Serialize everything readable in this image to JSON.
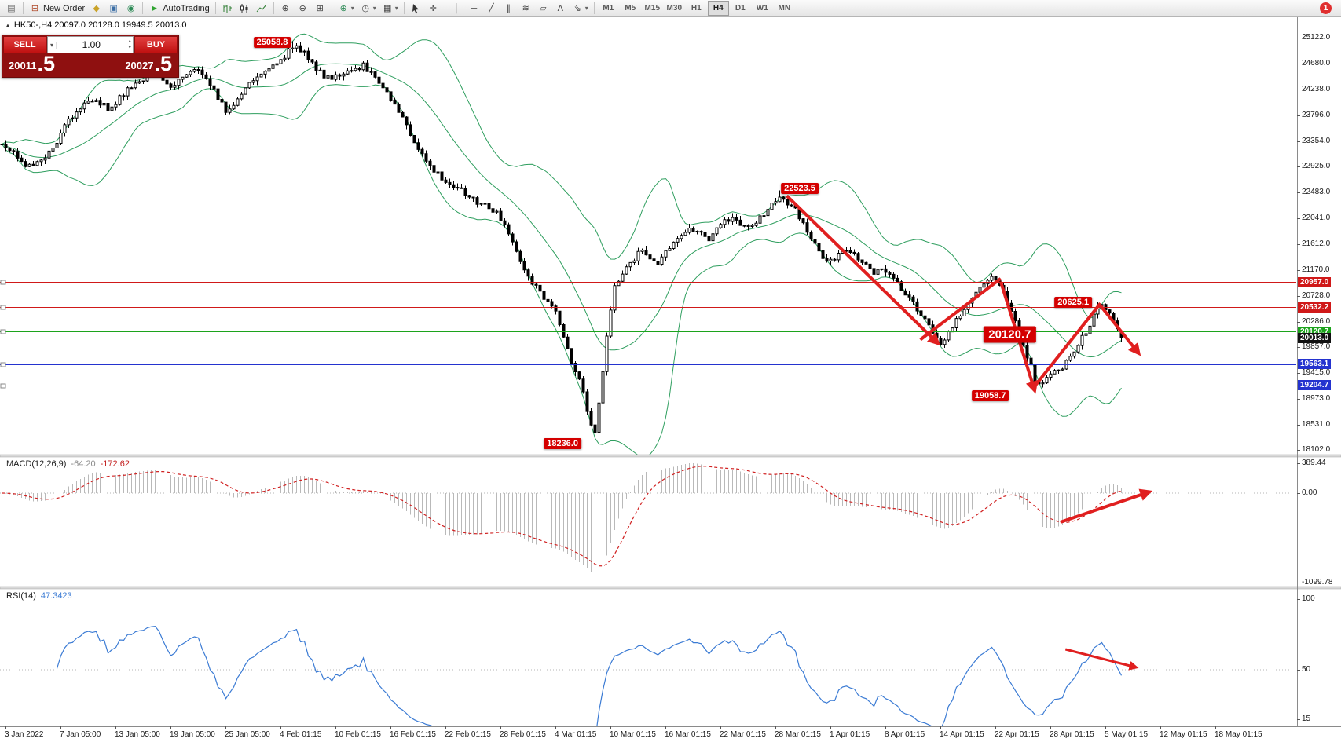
{
  "toolbar": {
    "caret_glyph": "▾",
    "notification_badge": "1",
    "timeframes": {
      "items": [
        "M1",
        "M5",
        "M15",
        "M30",
        "H1",
        "H4",
        "D1",
        "W1",
        "MN"
      ],
      "active": "H4"
    },
    "groups": [
      {
        "items": [
          {
            "name": "chart-window-icon",
            "glyph": "▤",
            "color": "#666666"
          }
        ]
      },
      {
        "items": [
          {
            "name": "new-order-button",
            "glyph": "⊞",
            "color": "#b04a2a",
            "label": "New Order"
          },
          {
            "name": "chart-profiles-icon",
            "glyph": "◆",
            "color": "#c9a227"
          },
          {
            "name": "metaeditor-icon",
            "glyph": "▣",
            "color": "#3b6ea5"
          },
          {
            "name": "alerts-icon",
            "glyph": "◉",
            "color": "#2e8b57"
          }
        ]
      },
      {
        "items": [
          {
            "name": "autotrading-button",
            "glyph": "►",
            "color": "#2fa431",
            "label": "AutoTrading"
          }
        ]
      },
      {
        "items": [
          {
            "name": "bar-chart-type-icon",
            "shape": "bars"
          },
          {
            "name": "candlestick-chart-type-icon",
            "shape": "candles"
          },
          {
            "name": "line-chart-type-icon",
            "shape": "linechart"
          }
        ]
      },
      {
        "items": [
          {
            "name": "zoom-in-icon",
            "glyph": "⊕",
            "color": "#444444"
          },
          {
            "name": "zoom-out-icon",
            "glyph": "⊖",
            "color": "#444444"
          },
          {
            "name": "tile-windows-icon",
            "glyph": "⊞",
            "color": "#444444"
          }
        ]
      },
      {
        "items": [
          {
            "name": "indicators-dropdown",
            "glyph": "⊕",
            "color": "#2e8b57",
            "caret": true
          },
          {
            "name": "periods-dropdown",
            "glyph": "◷",
            "color": "#444444",
            "caret": true
          },
          {
            "name": "templates-dropdown",
            "glyph": "▦",
            "color": "#444444",
            "caret": true
          }
        ]
      },
      {
        "items": [
          {
            "name": "cursor-tool-icon",
            "shape": "cursor"
          },
          {
            "name": "crosshair-tool-icon",
            "glyph": "✛",
            "color": "#444444"
          }
        ]
      },
      {
        "items": [
          {
            "name": "vertical-line-icon",
            "glyph": "│",
            "color": "#444444"
          },
          {
            "name": "horizontal-line-icon",
            "glyph": "─",
            "color": "#444444"
          },
          {
            "name": "trendline-icon",
            "glyph": "╱",
            "color": "#444444"
          },
          {
            "name": "channel-icon",
            "glyph": "∥",
            "color": "#444444"
          },
          {
            "name": "fibonacci-icon",
            "glyph": "≋",
            "color": "#444444"
          },
          {
            "name": "shapes-icon",
            "glyph": "▱",
            "color": "#444444"
          },
          {
            "name": "text-icon",
            "glyph": "A",
            "color": "#444444"
          },
          {
            "name": "arrows-dropdown",
            "glyph": "⇘",
            "color": "#444444",
            "caret": true
          }
        ]
      }
    ]
  },
  "trade_panel": {
    "sell_label": "SELL",
    "buy_label": "BUY",
    "volume": "1.00",
    "volume_caret": "▾",
    "volume_up": "▴",
    "volume_down": "▾",
    "sell_price_int": "20011",
    "sell_price_frac": ".5",
    "buy_price_int": "20027",
    "buy_price_frac": ".5"
  },
  "chart": {
    "symbol_marker": "▲",
    "symbol_ohlc": "HK50-,H4  20097.0 20128.0 19949.5 20013.0",
    "price_axis_ticks": [
      25122.0,
      24680.0,
      24238.0,
      23796.0,
      23354.0,
      22925.0,
      22483.0,
      22041.0,
      21612.0,
      21170.0,
      20728.0,
      20286.0,
      19857.0,
      19415.0,
      18973.0,
      18531.0,
      18102.0
    ],
    "time_labels": [
      "3 Jan 2022",
      "7 Jan 05:00",
      "13 Jan 05:00",
      "19 Jan 05:00",
      "25 Jan 05:00",
      "4 Feb 01:15",
      "10 Feb 01:15",
      "16 Feb 01:15",
      "22 Feb 01:15",
      "28 Feb 01:15",
      "4 Mar 01:15",
      "10 Mar 01:15",
      "16 Mar 01:15",
      "22 Mar 01:15",
      "28 Mar 01:15",
      "1 Apr 01:15",
      "8 Apr 01:15",
      "14 Apr 01:15",
      "22 Apr 01:15",
      "28 Apr 01:15",
      "5 May 01:15",
      "12 May 01:15",
      "18 May 01:15"
    ],
    "lines": [
      {
        "price": 20957.0,
        "label": "20957.0",
        "color": "#d01919",
        "style": "solid"
      },
      {
        "price": 20532.2,
        "label": "20532.2",
        "color": "#d01919",
        "style": "solid"
      },
      {
        "price": 20120.7,
        "label": "20120.7",
        "color": "#1ca31c",
        "style": "solid"
      },
      {
        "price": 20013.0,
        "label": "20013.0",
        "color": "#1ca31c",
        "style": "dotted",
        "tag_bg": "#111111"
      },
      {
        "price": 19563.1,
        "label": "19563.1",
        "color": "#2433cf",
        "style": "solid"
      },
      {
        "price": 19204.7,
        "label": "19204.7",
        "color": "#2433cf",
        "style": "solid"
      }
    ],
    "callouts": [
      {
        "text": "25058.8",
        "t": 0.21,
        "price": 25040,
        "big": false
      },
      {
        "text": "22523.5",
        "t": 0.617,
        "price": 22560,
        "big": false
      },
      {
        "text": "20625.1",
        "t": 0.828,
        "price": 20610,
        "big": false
      },
      {
        "text": "20120.7",
        "t": 0.779,
        "price": 20070,
        "big": true
      },
      {
        "text": "19058.7",
        "t": 0.764,
        "price": 19030,
        "big": false
      },
      {
        "text": "18236.0",
        "t": 0.434,
        "price": 18210,
        "big": false
      }
    ],
    "trend_arrows": [
      {
        "from": [
          0.607,
          22430
        ],
        "to": [
          0.723,
          19930
        ],
        "head": true
      },
      {
        "from": [
          0.71,
          19980
        ],
        "to": [
          0.772,
          21020
        ],
        "head": false
      },
      {
        "from": [
          0.772,
          20970
        ],
        "to": [
          0.798,
          19130
        ],
        "head": true
      },
      {
        "from": [
          0.798,
          19180
        ],
        "to": [
          0.849,
          20600
        ],
        "head": false
      },
      {
        "from": [
          0.849,
          20560
        ],
        "to": [
          0.878,
          19760
        ],
        "head": true
      }
    ]
  },
  "macd": {
    "label": "MACD(12,26,9)",
    "value_main": "-64.20",
    "value_signal": "-172.62",
    "axis_ticks": [
      389.44,
      0.0,
      -1099.78
    ],
    "arrow": {
      "from": [
        0.818,
        0.5
      ],
      "to": [
        0.886,
        0.27
      ]
    }
  },
  "rsi": {
    "label": "RSI(14)",
    "value": "47.3423",
    "axis_ticks": [
      100,
      50,
      15
    ],
    "level": 50,
    "arrow": {
      "from": [
        0.822,
        0.44
      ],
      "to": [
        0.876,
        0.57
      ]
    }
  },
  "chart_data": {
    "type": "candlestick",
    "symbol": "HK50-",
    "timeframe": "H4",
    "ohlc_last": {
      "open": 20097.0,
      "high": 20128.0,
      "low": 19949.5,
      "close": 20013.0
    },
    "bid": 20011.5,
    "ask": 20027.5,
    "ylim": [
      18102.0,
      25122.0
    ],
    "bollinger": {
      "period": 20,
      "deviation": 2,
      "color": "#2e9e5e"
    },
    "swing_points": [
      {
        "t": 0.2255,
        "type": "high",
        "value": 25058.8
      },
      {
        "t": 0.459,
        "type": "low",
        "value": 18236.0
      },
      {
        "t": 0.602,
        "type": "high",
        "value": 22523.5
      },
      {
        "t": 0.8,
        "type": "low",
        "value": 19058.7
      },
      {
        "t": 0.848,
        "type": "high",
        "value": 20625.1
      }
    ],
    "indicators": [
      {
        "name": "MACD",
        "params": [
          12,
          26,
          9
        ],
        "values": [
          -64.2,
          -172.62
        ],
        "range": [
          -1099.78,
          389.44
        ]
      },
      {
        "name": "RSI",
        "params": [
          14
        ],
        "value": 47.3423,
        "range_ticks": [
          100,
          50,
          15
        ]
      }
    ],
    "price_path": [
      [
        0.003,
        23300
      ],
      [
        0.012,
        23150
      ],
      [
        0.02,
        22900
      ],
      [
        0.03,
        23000
      ],
      [
        0.036,
        23120
      ],
      [
        0.045,
        23400
      ],
      [
        0.052,
        23700
      ],
      [
        0.06,
        23900
      ],
      [
        0.069,
        24100
      ],
      [
        0.078,
        24000
      ],
      [
        0.085,
        23900
      ],
      [
        0.093,
        24100
      ],
      [
        0.101,
        24300
      ],
      [
        0.11,
        24420
      ],
      [
        0.118,
        24500
      ],
      [
        0.126,
        24380
      ],
      [
        0.134,
        24300
      ],
      [
        0.143,
        24450
      ],
      [
        0.151,
        24600
      ],
      [
        0.159,
        24380
      ],
      [
        0.167,
        24150
      ],
      [
        0.175,
        23820
      ],
      [
        0.182,
        24050
      ],
      [
        0.193,
        24400
      ],
      [
        0.201,
        24500
      ],
      [
        0.209,
        24620
      ],
      [
        0.218,
        24780
      ],
      [
        0.226,
        24960
      ],
      [
        0.233,
        24900
      ],
      [
        0.24,
        24700
      ],
      [
        0.247,
        24520
      ],
      [
        0.255,
        24420
      ],
      [
        0.262,
        24470
      ],
      [
        0.268,
        24520
      ],
      [
        0.275,
        24600
      ],
      [
        0.281,
        24650
      ],
      [
        0.29,
        24420
      ],
      [
        0.298,
        24200
      ],
      [
        0.305,
        23950
      ],
      [
        0.312,
        23700
      ],
      [
        0.321,
        23250
      ],
      [
        0.33,
        23000
      ],
      [
        0.338,
        22800
      ],
      [
        0.347,
        22620
      ],
      [
        0.355,
        22560
      ],
      [
        0.362,
        22420
      ],
      [
        0.37,
        22300
      ],
      [
        0.378,
        22250
      ],
      [
        0.386,
        22050
      ],
      [
        0.393,
        21800
      ],
      [
        0.4,
        21350
      ],
      [
        0.408,
        21050
      ],
      [
        0.414,
        20850
      ],
      [
        0.42,
        20700
      ],
      [
        0.428,
        20520
      ],
      [
        0.435,
        20050
      ],
      [
        0.441,
        19600
      ],
      [
        0.448,
        19300
      ],
      [
        0.453,
        18800
      ],
      [
        0.459,
        18350
      ],
      [
        0.464,
        19200
      ],
      [
        0.468,
        20000
      ],
      [
        0.474,
        20850
      ],
      [
        0.48,
        21100
      ],
      [
        0.487,
        21280
      ],
      [
        0.494,
        21480
      ],
      [
        0.5,
        21380
      ],
      [
        0.508,
        21300
      ],
      [
        0.514,
        21500
      ],
      [
        0.52,
        21600
      ],
      [
        0.527,
        21780
      ],
      [
        0.533,
        21880
      ],
      [
        0.54,
        21780
      ],
      [
        0.547,
        21700
      ],
      [
        0.553,
        21880
      ],
      [
        0.56,
        22000
      ],
      [
        0.567,
        22080
      ],
      [
        0.573,
        21900
      ],
      [
        0.58,
        21950
      ],
      [
        0.588,
        22100
      ],
      [
        0.595,
        22300
      ],
      [
        0.602,
        22460
      ],
      [
        0.608,
        22300
      ],
      [
        0.615,
        22150
      ],
      [
        0.622,
        21850
      ],
      [
        0.628,
        21600
      ],
      [
        0.634,
        21420
      ],
      [
        0.641,
        21320
      ],
      [
        0.648,
        21420
      ],
      [
        0.654,
        21520
      ],
      [
        0.66,
        21380
      ],
      [
        0.668,
        21250
      ],
      [
        0.674,
        21120
      ],
      [
        0.68,
        21180
      ],
      [
        0.688,
        21050
      ],
      [
        0.694,
        20880
      ],
      [
        0.701,
        20700
      ],
      [
        0.708,
        20480
      ],
      [
        0.714,
        20300
      ],
      [
        0.72,
        20050
      ],
      [
        0.727,
        19900
      ],
      [
        0.733,
        20150
      ],
      [
        0.74,
        20400
      ],
      [
        0.747,
        20600
      ],
      [
        0.753,
        20800
      ],
      [
        0.759,
        20950
      ],
      [
        0.765,
        21020
      ],
      [
        0.77,
        20950
      ],
      [
        0.776,
        20700
      ],
      [
        0.782,
        20350
      ],
      [
        0.788,
        20000
      ],
      [
        0.794,
        19600
      ],
      [
        0.8,
        19200
      ],
      [
        0.806,
        19280
      ],
      [
        0.812,
        19480
      ],
      [
        0.818,
        19420
      ],
      [
        0.824,
        19620
      ],
      [
        0.83,
        19850
      ],
      [
        0.836,
        20050
      ],
      [
        0.842,
        20300
      ],
      [
        0.848,
        20560
      ],
      [
        0.854,
        20500
      ],
      [
        0.86,
        20250
      ],
      [
        0.866,
        20060
      ],
      [
        0.868,
        20013
      ]
    ]
  }
}
